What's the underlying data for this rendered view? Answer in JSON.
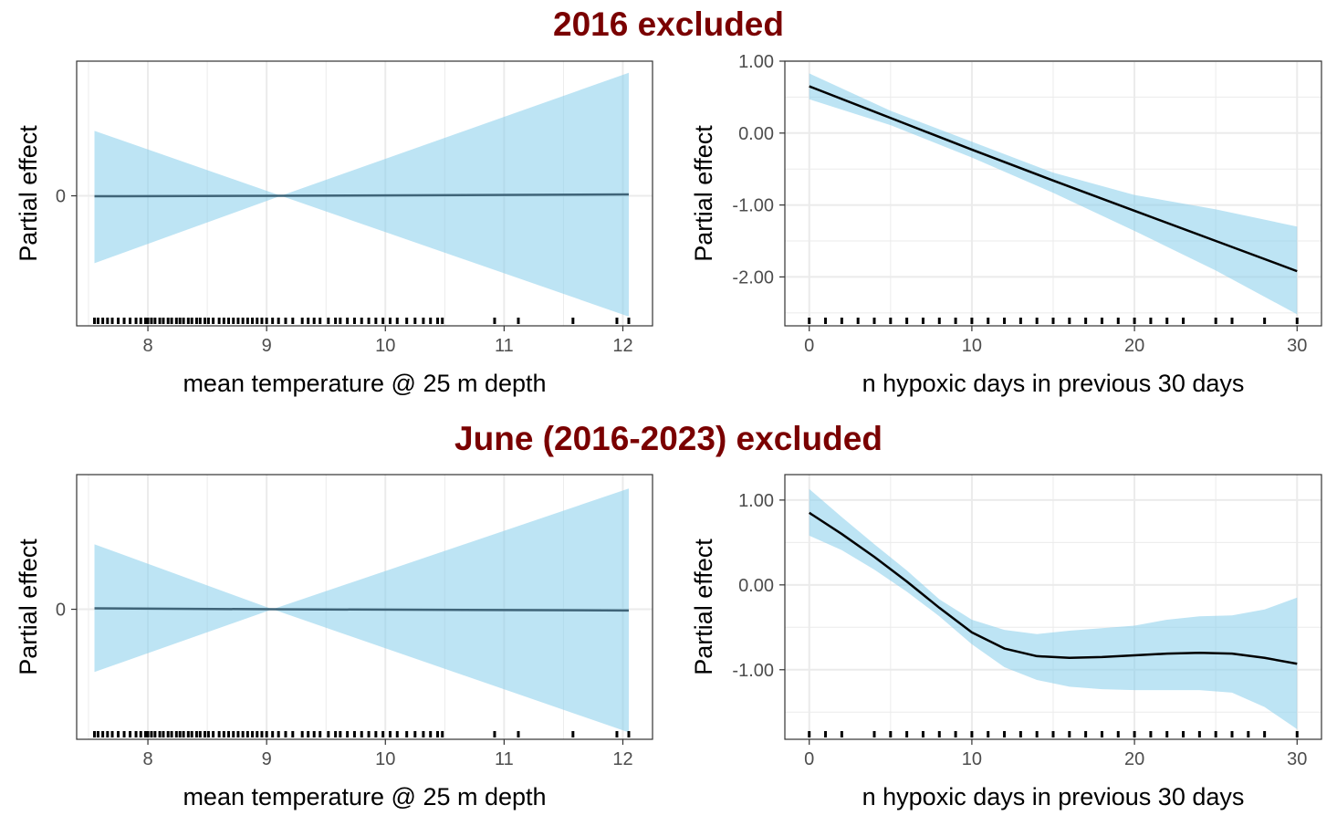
{
  "sections": [
    {
      "title": "2016 excluded"
    },
    {
      "title": "June (2016-2023) excluded"
    }
  ],
  "colors": {
    "title": "#7a0000",
    "ribbon": "#87ceeb",
    "temp_line": "#3f6478",
    "hypoxia_line": "#000000",
    "grid": "#ebebeb",
    "rug": "#000000"
  },
  "chart_data": [
    {
      "type": "line",
      "section": "2016 excluded",
      "xlabel": "mean temperature @ 25 m depth",
      "ylabel": "Partial effect",
      "xlim": [
        7.4,
        12.25
      ],
      "ylim": [
        -0.56,
        0.58
      ],
      "xticks": [
        8,
        9,
        10,
        11,
        12
      ],
      "yticks": [
        0
      ],
      "ytick_labels": [
        "0"
      ],
      "grid": true,
      "series": [
        {
          "x": [
            7.55,
            9.12,
            12.05
          ],
          "y": [
            -0.002,
            0.0,
            0.006
          ],
          "lower": [
            -0.29,
            0.0,
            -0.52
          ],
          "upper": [
            0.28,
            0.0,
            0.53
          ]
        }
      ],
      "rug": [
        7.55,
        7.58,
        7.62,
        7.66,
        7.7,
        7.75,
        7.8,
        7.85,
        7.9,
        7.94,
        7.98,
        8.0,
        8.03,
        8.06,
        8.1,
        8.13,
        8.17,
        8.2,
        8.24,
        8.27,
        8.3,
        8.34,
        8.37,
        8.41,
        8.44,
        8.48,
        8.51,
        8.55,
        8.6,
        8.64,
        8.68,
        8.72,
        8.76,
        8.8,
        8.84,
        8.88,
        8.92,
        8.96,
        9.0,
        9.05,
        9.1,
        9.16,
        9.22,
        9.3,
        9.35,
        9.4,
        9.45,
        9.52,
        9.58,
        9.62,
        9.68,
        9.74,
        9.8,
        9.86,
        9.92,
        9.98,
        10.04,
        10.1,
        10.18,
        10.25,
        10.32,
        10.38,
        10.44,
        10.48,
        10.92,
        11.12,
        11.58,
        11.95,
        12.05
      ]
    },
    {
      "type": "line",
      "section": "2016 excluded",
      "xlabel": "n hypoxic days in previous 30 days",
      "ylabel": "Partial effect",
      "xlim": [
        -1.5,
        31.5
      ],
      "ylim": [
        -2.68,
        1.0
      ],
      "xticks": [
        0,
        10,
        20,
        30
      ],
      "yticks": [
        1,
        0,
        -1,
        -2
      ],
      "ytick_labels": [
        "1.00",
        "0.00",
        "-1.00",
        "-2.00"
      ],
      "grid": true,
      "series": [
        {
          "x": [
            0,
            5,
            10,
            15,
            20,
            25,
            30
          ],
          "y": [
            0.65,
            0.21,
            -0.23,
            -0.66,
            -1.08,
            -1.5,
            -1.92
          ],
          "lower": [
            0.47,
            0.11,
            -0.34,
            -0.83,
            -1.36,
            -1.91,
            -2.52
          ],
          "upper": [
            0.83,
            0.31,
            -0.12,
            -0.55,
            -0.86,
            -1.06,
            -1.3
          ]
        }
      ],
      "rug": [
        0,
        1,
        2,
        3,
        4,
        5,
        6,
        7,
        8,
        9,
        10,
        11,
        12,
        13,
        14,
        15,
        16,
        17,
        18,
        19,
        20,
        21,
        22,
        23,
        25,
        26,
        28,
        30
      ]
    },
    {
      "type": "line",
      "section": "June (2016-2023) excluded",
      "xlabel": "mean temperature @ 25 m depth",
      "ylabel": "Partial effect",
      "xlim": [
        7.4,
        12.25
      ],
      "ylim": [
        -0.56,
        0.58
      ],
      "xticks": [
        8,
        9,
        10,
        11,
        12
      ],
      "yticks": [
        0
      ],
      "ytick_labels": [
        "0"
      ],
      "grid": true,
      "series": [
        {
          "x": [
            7.55,
            9.05,
            12.05
          ],
          "y": [
            0.004,
            0.0,
            -0.005
          ],
          "lower": [
            -0.27,
            0.0,
            -0.53
          ],
          "upper": [
            0.28,
            0.0,
            0.52
          ]
        }
      ],
      "rug": [
        7.55,
        7.58,
        7.62,
        7.66,
        7.7,
        7.75,
        7.8,
        7.85,
        7.9,
        7.94,
        7.98,
        8.0,
        8.03,
        8.06,
        8.1,
        8.13,
        8.17,
        8.2,
        8.24,
        8.27,
        8.3,
        8.34,
        8.37,
        8.41,
        8.44,
        8.48,
        8.51,
        8.55,
        8.6,
        8.64,
        8.68,
        8.72,
        8.76,
        8.8,
        8.84,
        8.88,
        8.92,
        8.96,
        9.0,
        9.05,
        9.1,
        9.16,
        9.22,
        9.3,
        9.35,
        9.4,
        9.45,
        9.52,
        9.58,
        9.62,
        9.68,
        9.74,
        9.8,
        9.86,
        9.92,
        9.98,
        10.04,
        10.1,
        10.18,
        10.25,
        10.32,
        10.38,
        10.44,
        10.48,
        10.92,
        11.12,
        11.58,
        11.95,
        12.05
      ]
    },
    {
      "type": "line",
      "section": "June (2016-2023) excluded",
      "xlabel": "n hypoxic days in previous 30 days",
      "ylabel": "Partial effect",
      "xlim": [
        -1.5,
        31.5
      ],
      "ylim": [
        -1.82,
        1.3
      ],
      "xticks": [
        0,
        10,
        20,
        30
      ],
      "yticks": [
        1,
        0,
        -1
      ],
      "ytick_labels": [
        "1.00",
        "0.00",
        "-1.00"
      ],
      "grid": true,
      "series": [
        {
          "x": [
            0,
            2,
            4,
            6,
            8,
            10,
            12,
            14,
            16,
            18,
            20,
            22,
            24,
            26,
            28,
            30
          ],
          "y": [
            0.85,
            0.6,
            0.33,
            0.04,
            -0.27,
            -0.56,
            -0.75,
            -0.84,
            -0.86,
            -0.85,
            -0.83,
            -0.81,
            -0.8,
            -0.81,
            -0.86,
            -0.93
          ],
          "lower": [
            0.58,
            0.41,
            0.18,
            -0.08,
            -0.37,
            -0.7,
            -0.97,
            -1.12,
            -1.2,
            -1.23,
            -1.24,
            -1.24,
            -1.24,
            -1.27,
            -1.44,
            -1.7
          ],
          "upper": [
            1.13,
            0.8,
            0.48,
            0.17,
            -0.17,
            -0.41,
            -0.53,
            -0.58,
            -0.54,
            -0.51,
            -0.48,
            -0.41,
            -0.37,
            -0.36,
            -0.29,
            -0.15
          ]
        }
      ],
      "rug": [
        0,
        1,
        2,
        4,
        5,
        6,
        7,
        8,
        9,
        10,
        11,
        12,
        13,
        14,
        15,
        16,
        17,
        18,
        19,
        20,
        21,
        22,
        23,
        24,
        25,
        26,
        27,
        28,
        30
      ]
    }
  ]
}
